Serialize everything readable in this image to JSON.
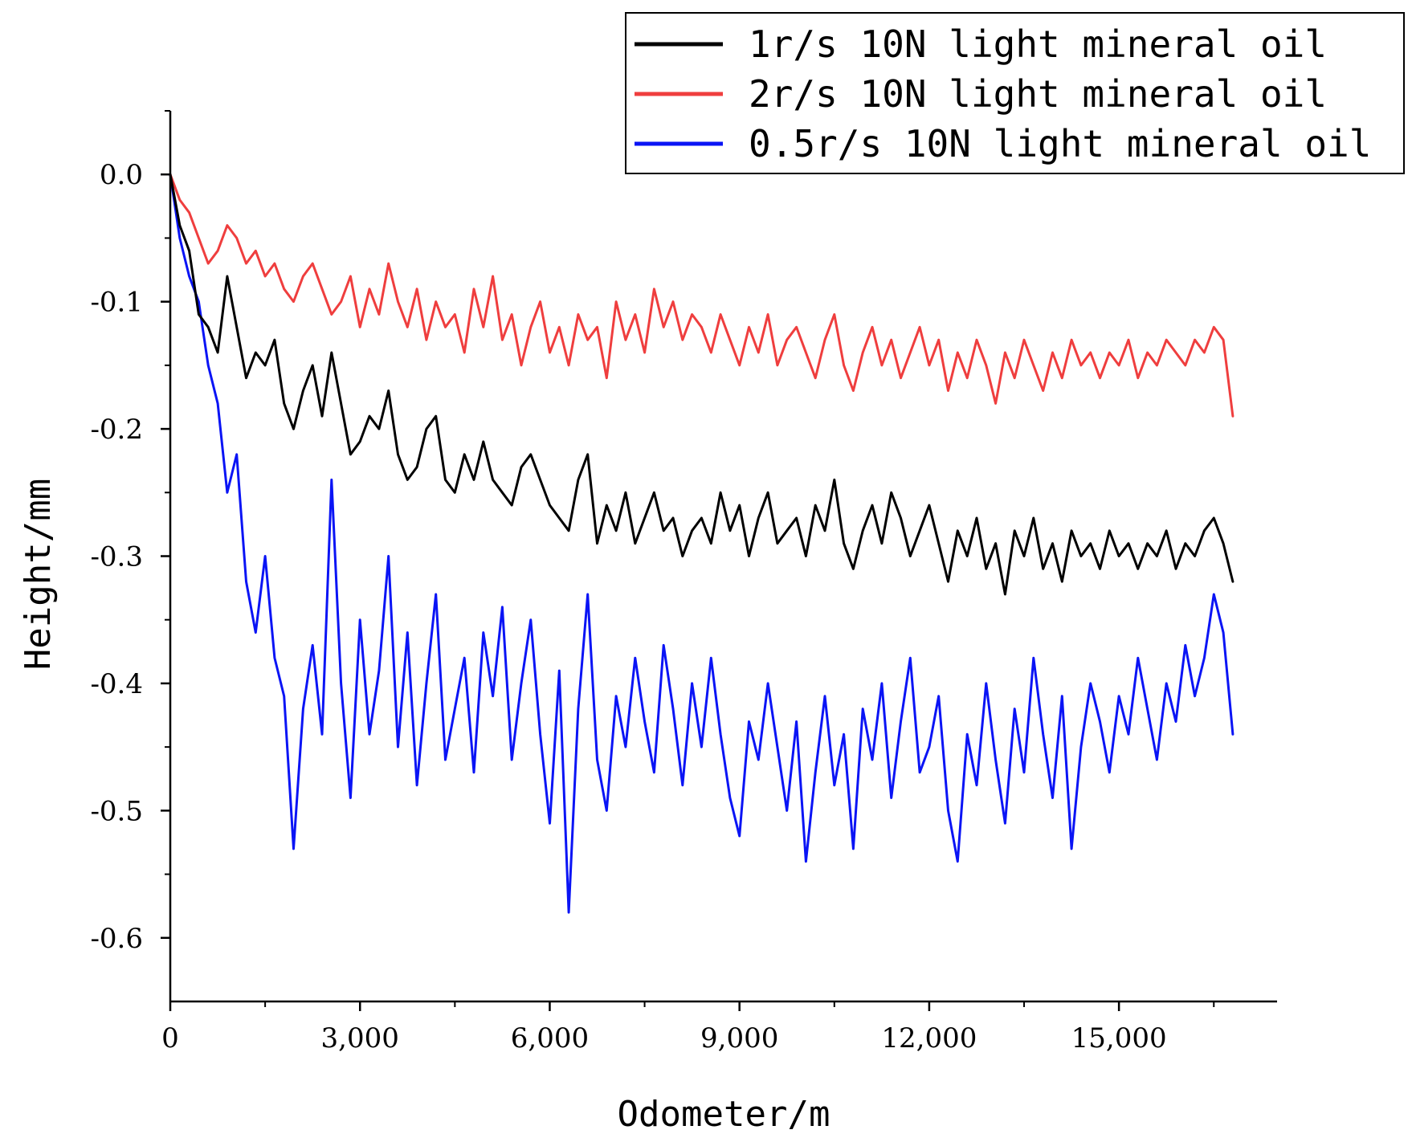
{
  "chart_data": {
    "type": "line",
    "title": "",
    "xlabel": "Odometer/m",
    "ylabel": "Height/mm",
    "xlim": [
      0,
      17500
    ],
    "ylim": [
      -0.65,
      0.05
    ],
    "xticks": [
      0,
      3000,
      6000,
      9000,
      12000,
      15000
    ],
    "xtick_labels": [
      "0",
      "3,000",
      "6,000",
      "9,000",
      "12,000",
      "15,000"
    ],
    "yticks": [
      0.0,
      -0.1,
      -0.2,
      -0.3,
      -0.4,
      -0.5,
      -0.6
    ],
    "ytick_labels": [
      "0.0",
      "-0.1",
      "-0.2",
      "-0.3",
      "-0.4",
      "-0.5",
      "-0.6"
    ],
    "legend_position": "top-right",
    "grid": false,
    "series": [
      {
        "name": "1r/s 10N light mineral oil",
        "color": "#000000",
        "x": [
          0,
          150,
          300,
          450,
          600,
          750,
          900,
          1050,
          1200,
          1350,
          1500,
          1650,
          1800,
          1950,
          2100,
          2250,
          2400,
          2550,
          2700,
          2850,
          3000,
          3150,
          3300,
          3450,
          3600,
          3750,
          3900,
          4050,
          4200,
          4350,
          4500,
          4650,
          4800,
          4950,
          5100,
          5250,
          5400,
          5550,
          5700,
          5850,
          6000,
          6150,
          6300,
          6450,
          6600,
          6750,
          6900,
          7050,
          7200,
          7350,
          7500,
          7650,
          7800,
          7950,
          8100,
          8250,
          8400,
          8550,
          8700,
          8850,
          9000,
          9150,
          9300,
          9450,
          9600,
          9750,
          9900,
          10050,
          10200,
          10350,
          10500,
          10650,
          10800,
          10950,
          11100,
          11250,
          11400,
          11550,
          11700,
          11850,
          12000,
          12150,
          12300,
          12450,
          12600,
          12750,
          12900,
          13050,
          13200,
          13350,
          13500,
          13650,
          13800,
          13950,
          14100,
          14250,
          14400,
          14550,
          14700,
          14850,
          15000,
          15150,
          15300,
          15450,
          15600,
          15750,
          15900,
          16050,
          16200,
          16350,
          16500,
          16650,
          16800
        ],
        "values": [
          0.0,
          -0.04,
          -0.06,
          -0.11,
          -0.12,
          -0.14,
          -0.08,
          -0.12,
          -0.16,
          -0.14,
          -0.15,
          -0.13,
          -0.18,
          -0.2,
          -0.17,
          -0.15,
          -0.19,
          -0.14,
          -0.18,
          -0.22,
          -0.21,
          -0.19,
          -0.2,
          -0.17,
          -0.22,
          -0.24,
          -0.23,
          -0.2,
          -0.19,
          -0.24,
          -0.25,
          -0.22,
          -0.24,
          -0.21,
          -0.24,
          -0.25,
          -0.26,
          -0.23,
          -0.22,
          -0.24,
          -0.26,
          -0.27,
          -0.28,
          -0.24,
          -0.22,
          -0.29,
          -0.26,
          -0.28,
          -0.25,
          -0.29,
          -0.27,
          -0.25,
          -0.28,
          -0.27,
          -0.3,
          -0.28,
          -0.27,
          -0.29,
          -0.25,
          -0.28,
          -0.26,
          -0.3,
          -0.27,
          -0.25,
          -0.29,
          -0.28,
          -0.27,
          -0.3,
          -0.26,
          -0.28,
          -0.24,
          -0.29,
          -0.31,
          -0.28,
          -0.26,
          -0.29,
          -0.25,
          -0.27,
          -0.3,
          -0.28,
          -0.26,
          -0.29,
          -0.32,
          -0.28,
          -0.3,
          -0.27,
          -0.31,
          -0.29,
          -0.33,
          -0.28,
          -0.3,
          -0.27,
          -0.31,
          -0.29,
          -0.32,
          -0.28,
          -0.3,
          -0.29,
          -0.31,
          -0.28,
          -0.3,
          -0.29,
          -0.31,
          -0.29,
          -0.3,
          -0.28,
          -0.31,
          -0.29,
          -0.3,
          -0.28,
          -0.27,
          -0.29,
          -0.32
        ]
      },
      {
        "name": "2r/s 10N light mineral oil",
        "color": "#ef3e3e",
        "x": [
          0,
          150,
          300,
          450,
          600,
          750,
          900,
          1050,
          1200,
          1350,
          1500,
          1650,
          1800,
          1950,
          2100,
          2250,
          2400,
          2550,
          2700,
          2850,
          3000,
          3150,
          3300,
          3450,
          3600,
          3750,
          3900,
          4050,
          4200,
          4350,
          4500,
          4650,
          4800,
          4950,
          5100,
          5250,
          5400,
          5550,
          5700,
          5850,
          6000,
          6150,
          6300,
          6450,
          6600,
          6750,
          6900,
          7050,
          7200,
          7350,
          7500,
          7650,
          7800,
          7950,
          8100,
          8250,
          8400,
          8550,
          8700,
          8850,
          9000,
          9150,
          9300,
          9450,
          9600,
          9750,
          9900,
          10050,
          10200,
          10350,
          10500,
          10650,
          10800,
          10950,
          11100,
          11250,
          11400,
          11550,
          11700,
          11850,
          12000,
          12150,
          12300,
          12450,
          12600,
          12750,
          12900,
          13050,
          13200,
          13350,
          13500,
          13650,
          13800,
          13950,
          14100,
          14250,
          14400,
          14550,
          14700,
          14850,
          15000,
          15150,
          15300,
          15450,
          15600,
          15750,
          15900,
          16050,
          16200,
          16350,
          16500,
          16650,
          16800
        ],
        "values": [
          0.0,
          -0.02,
          -0.03,
          -0.05,
          -0.07,
          -0.06,
          -0.04,
          -0.05,
          -0.07,
          -0.06,
          -0.08,
          -0.07,
          -0.09,
          -0.1,
          -0.08,
          -0.07,
          -0.09,
          -0.11,
          -0.1,
          -0.08,
          -0.12,
          -0.09,
          -0.11,
          -0.07,
          -0.1,
          -0.12,
          -0.09,
          -0.13,
          -0.1,
          -0.12,
          -0.11,
          -0.14,
          -0.09,
          -0.12,
          -0.08,
          -0.13,
          -0.11,
          -0.15,
          -0.12,
          -0.1,
          -0.14,
          -0.12,
          -0.15,
          -0.11,
          -0.13,
          -0.12,
          -0.16,
          -0.1,
          -0.13,
          -0.11,
          -0.14,
          -0.09,
          -0.12,
          -0.1,
          -0.13,
          -0.11,
          -0.12,
          -0.14,
          -0.11,
          -0.13,
          -0.15,
          -0.12,
          -0.14,
          -0.11,
          -0.15,
          -0.13,
          -0.12,
          -0.14,
          -0.16,
          -0.13,
          -0.11,
          -0.15,
          -0.17,
          -0.14,
          -0.12,
          -0.15,
          -0.13,
          -0.16,
          -0.14,
          -0.12,
          -0.15,
          -0.13,
          -0.17,
          -0.14,
          -0.16,
          -0.13,
          -0.15,
          -0.18,
          -0.14,
          -0.16,
          -0.13,
          -0.15,
          -0.17,
          -0.14,
          -0.16,
          -0.13,
          -0.15,
          -0.14,
          -0.16,
          -0.14,
          -0.15,
          -0.13,
          -0.16,
          -0.14,
          -0.15,
          -0.13,
          -0.14,
          -0.15,
          -0.13,
          -0.14,
          -0.12,
          -0.13,
          -0.19
        ]
      },
      {
        "name": "0.5r/s 10N light mineral oil",
        "color": "#0a14f5",
        "x": [
          0,
          150,
          300,
          450,
          600,
          750,
          900,
          1050,
          1200,
          1350,
          1500,
          1650,
          1800,
          1950,
          2100,
          2250,
          2400,
          2550,
          2700,
          2850,
          3000,
          3150,
          3300,
          3450,
          3600,
          3750,
          3900,
          4050,
          4200,
          4350,
          4500,
          4650,
          4800,
          4950,
          5100,
          5250,
          5400,
          5550,
          5700,
          5850,
          6000,
          6150,
          6300,
          6450,
          6600,
          6750,
          6900,
          7050,
          7200,
          7350,
          7500,
          7650,
          7800,
          7950,
          8100,
          8250,
          8400,
          8550,
          8700,
          8850,
          9000,
          9150,
          9300,
          9450,
          9600,
          9750,
          9900,
          10050,
          10200,
          10350,
          10500,
          10650,
          10800,
          10950,
          11100,
          11250,
          11400,
          11550,
          11700,
          11850,
          12000,
          12150,
          12300,
          12450,
          12600,
          12750,
          12900,
          13050,
          13200,
          13350,
          13500,
          13650,
          13800,
          13950,
          14100,
          14250,
          14400,
          14550,
          14700,
          14850,
          15000,
          15150,
          15300,
          15450,
          15600,
          15750,
          15900,
          16050,
          16200,
          16350,
          16500,
          16650,
          16800
        ],
        "values": [
          0.0,
          -0.05,
          -0.08,
          -0.1,
          -0.15,
          -0.18,
          -0.25,
          -0.22,
          -0.32,
          -0.36,
          -0.3,
          -0.38,
          -0.41,
          -0.53,
          -0.42,
          -0.37,
          -0.44,
          -0.24,
          -0.4,
          -0.49,
          -0.35,
          -0.44,
          -0.39,
          -0.3,
          -0.45,
          -0.36,
          -0.48,
          -0.4,
          -0.33,
          -0.46,
          -0.42,
          -0.38,
          -0.47,
          -0.36,
          -0.41,
          -0.34,
          -0.46,
          -0.4,
          -0.35,
          -0.44,
          -0.51,
          -0.39,
          -0.58,
          -0.42,
          -0.33,
          -0.46,
          -0.5,
          -0.41,
          -0.45,
          -0.38,
          -0.43,
          -0.47,
          -0.37,
          -0.42,
          -0.48,
          -0.4,
          -0.45,
          -0.38,
          -0.44,
          -0.49,
          -0.52,
          -0.43,
          -0.46,
          -0.4,
          -0.45,
          -0.5,
          -0.43,
          -0.54,
          -0.47,
          -0.41,
          -0.48,
          -0.44,
          -0.53,
          -0.42,
          -0.46,
          -0.4,
          -0.49,
          -0.43,
          -0.38,
          -0.47,
          -0.45,
          -0.41,
          -0.5,
          -0.54,
          -0.44,
          -0.48,
          -0.4,
          -0.46,
          -0.51,
          -0.42,
          -0.47,
          -0.38,
          -0.44,
          -0.49,
          -0.41,
          -0.53,
          -0.45,
          -0.4,
          -0.43,
          -0.47,
          -0.41,
          -0.44,
          -0.38,
          -0.42,
          -0.46,
          -0.4,
          -0.43,
          -0.37,
          -0.41,
          -0.38,
          -0.33,
          -0.36,
          -0.44
        ]
      }
    ]
  }
}
